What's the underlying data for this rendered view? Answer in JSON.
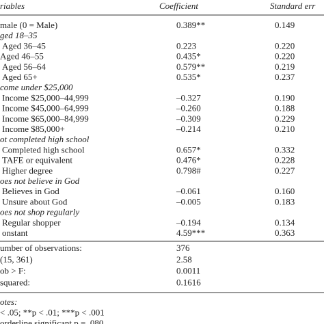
{
  "table": {
    "header": [
      "riables",
      "Coefficient",
      "Standard err"
    ],
    "rows": [
      [
        "male (0 = Male)",
        "0.389**",
        "0.149"
      ],
      [
        "ged 18–35"
      ],
      [
        "Aged 36–45",
        "0.223",
        "0.220"
      ],
      [
        "Aged 46–55",
        "0.435*",
        "0.220"
      ],
      [
        "Aged 56–64",
        "0.579**",
        "0.219"
      ],
      [
        "Aged 65+",
        "0.535*",
        "0.237"
      ],
      [
        "come under $25,000"
      ],
      [
        "Income $25,000–44,999",
        "–0.327",
        "0.190"
      ],
      [
        "Income $45,000–64,999",
        "–0.260",
        "0.188"
      ],
      [
        "Income $65,000–84,999",
        "–0.309",
        "0.229"
      ],
      [
        "Income $85,000+",
        "–0.214",
        "0.210"
      ],
      [
        "ot completed high school"
      ],
      [
        "Completed high school",
        "0.657*",
        "0.332"
      ],
      [
        "TAFE or equivalent",
        "0.476*",
        "0.228"
      ],
      [
        "Higher degree",
        "0.798#",
        "0.227"
      ],
      [
        "oes not believe in God"
      ],
      [
        "Believes in God",
        "–0.061",
        "0.160"
      ],
      [
        "Unsure about God",
        "–0.005",
        "0.183"
      ],
      [
        "oes not shop regularly"
      ],
      [
        "Regular shopper",
        "–0.194",
        "0.134"
      ],
      [
        "onstant",
        "4.59***",
        "0.363"
      ]
    ],
    "summary": [
      [
        "umber of observations:",
        "376"
      ],
      [
        "(15, 361)",
        "2.58"
      ],
      [
        "ob > F:",
        "0.0011"
      ],
      [
        "squared:",
        "0.1616"
      ]
    ],
    "notes": [
      "otes:",
      "< .05; **p < .01; ***p < .001",
      "orderline significant p = .080"
    ]
  }
}
